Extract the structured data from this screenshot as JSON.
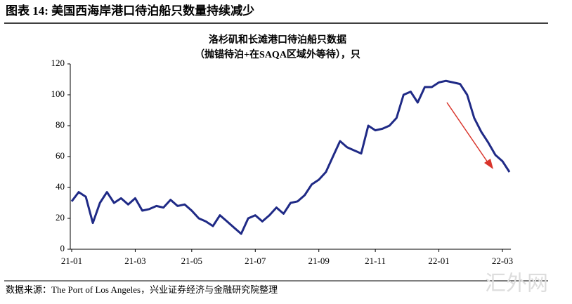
{
  "header": "图表 14:  美国西海岸港口待泊船只数量持续减少",
  "source": "数据来源：The Port of Los Angeles，兴业证券经济与金融研究院整理",
  "watermark": "汇外网",
  "chart_data": {
    "type": "line",
    "title": "洛杉矶和长滩港口待泊船只数据",
    "subtitle": "（抛锚待泊+在SAQA区域外等待），只",
    "categories": [
      "21-01",
      null,
      null,
      null,
      null,
      null,
      null,
      null,
      null,
      "21-03",
      null,
      null,
      null,
      null,
      null,
      null,
      null,
      "21-05",
      null,
      null,
      null,
      null,
      null,
      null,
      null,
      null,
      "21-07",
      null,
      null,
      null,
      null,
      null,
      null,
      null,
      null,
      "21-09",
      null,
      null,
      null,
      null,
      null,
      null,
      null,
      "21-11",
      null,
      null,
      null,
      null,
      null,
      null,
      null,
      null,
      "22-01",
      null,
      null,
      null,
      null,
      null,
      null,
      null,
      null,
      "22-03",
      null
    ],
    "series": [
      {
        "name": "待泊船只",
        "color": "#1f2a86",
        "values": [
          31,
          37,
          34,
          17,
          30,
          37,
          30,
          33,
          29,
          33,
          25,
          26,
          28,
          27,
          32,
          28,
          29,
          25,
          20,
          18,
          15,
          22,
          18,
          14,
          10,
          20,
          22,
          18,
          22,
          27,
          23,
          30,
          31,
          35,
          42,
          45,
          50,
          60,
          70,
          66,
          64,
          62,
          80,
          77,
          78,
          80,
          85,
          100,
          102,
          95,
          105,
          105,
          108,
          109,
          108,
          107,
          100,
          85,
          76,
          69,
          61,
          57,
          50
        ]
      }
    ],
    "ylim": [
      0,
      120
    ],
    "yticks": [
      0,
      20,
      40,
      60,
      80,
      100,
      120
    ],
    "grid": false
  }
}
